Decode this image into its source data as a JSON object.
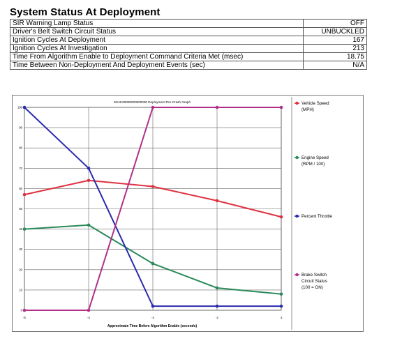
{
  "page": {
    "title": "System Status At Deployment"
  },
  "status_table": [
    {
      "label": "SIR Warning Lamp Status",
      "value": "OFF"
    },
    {
      "label": "Driver's Belt Switch Circuit Status",
      "value": "UNBUCKLED"
    },
    {
      "label": "Ignition Cycles At Deployment",
      "value": "167"
    },
    {
      "label": "Ignition Cycles At Investigation",
      "value": "213"
    },
    {
      "label": "Time From Algorithm Enable to Deployment Command Criteria Met (msec)",
      "value": "18.75"
    },
    {
      "label": "Time Between Non-Deployment And Deployment Events (sec)",
      "value": "N/A"
    }
  ],
  "chart_data": {
    "type": "line",
    "title": "0GAK00000000000000 Deployment Pre-Crash Graph",
    "xlabel": "Approximate Time Before Algorithm Enable (seconds)",
    "ylabel": "",
    "x": [
      -5,
      -4,
      -3,
      -2,
      -1
    ],
    "xlim": [
      -5,
      -1
    ],
    "ylim": [
      0,
      100
    ],
    "yticks": [
      0,
      10,
      20,
      30,
      40,
      50,
      60,
      70,
      80,
      90,
      100
    ],
    "grid": true,
    "legend_position": "right",
    "series": [
      {
        "name": "Vehicle Speed (MPH)",
        "legend_lines": [
          "Vehicle Speed",
          "(MPH)"
        ],
        "color": "#e03040",
        "values": [
          57,
          64,
          61,
          54,
          46
        ]
      },
      {
        "name": "Engine Speed (RPM / 100)",
        "legend_lines": [
          "Engine Speed",
          "(RPM / 100)"
        ],
        "color": "#2a8a5a",
        "values": [
          40,
          42,
          23,
          11,
          8
        ]
      },
      {
        "name": "Percent Throttle",
        "legend_lines": [
          "Percent Throttle"
        ],
        "color": "#2a2ab0",
        "values": [
          100,
          70,
          2,
          2,
          2
        ]
      },
      {
        "name": "Brake Switch Circuit Status (100 = ON)",
        "legend_lines": [
          "Brake Switch",
          "Circuit Status",
          "(100 = ON)"
        ],
        "color": "#b0308a",
        "values": [
          0,
          0,
          100,
          100,
          100
        ]
      }
    ]
  }
}
